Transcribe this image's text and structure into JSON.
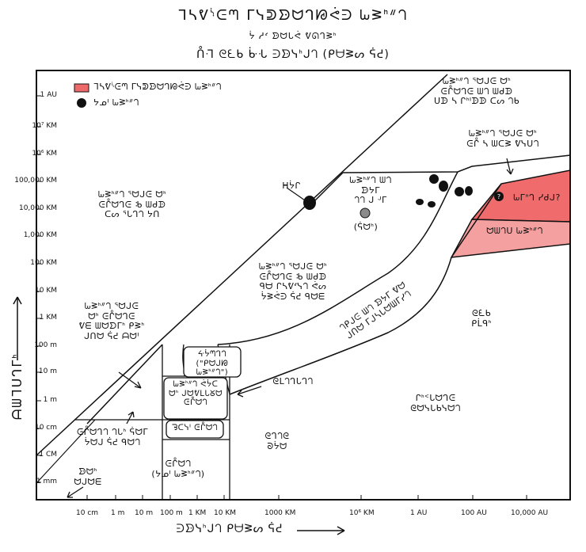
{
  "title": {
    "line1": "ᒣᓴᕓᔋᕮᘉ ᒥᓭᕲᗦᗢᒉᘘᕚᕭ ᘈᕒᑋᐥᘃ",
    "line2": "ᔮ ᓱᔊ ᗦᗢᒐᕚ ᕓᘏᒉᕒᑋ",
    "line3": "ᑍᒬ ᘓᘍᑲ ᒁᒜ ᕭᗦᓭᑋᒍᘃ (ᑭᗨᕒᔕ ᕌᕍ)"
  },
  "legend": {
    "highlight_label": "ᒣᓴᕓᔋᕮᘉ ᒥᓭᕲᗦᗢᒉᘘᕚᕭ ᘈᕒᑋᐥᘃ",
    "dot_label": "ᔭᓄᑊ ᘈᕒᑋᐥᘃ",
    "highlight_color": "#ee6a6a",
    "highlight_light_color": "#f4a0a0",
    "highlight_dark_color": "#f06b6b",
    "dot_color": "#111111",
    "gray_dot_color": "#8a8a8a"
  },
  "regions": {
    "too_dense": "ᘈᕒᑋᐥᘃ ᕐᗢᒍᕮ ᗢᑋ\nᕮᒊᗢᒉᕮ ᒂ ᗯᑯᗬ\nᑕᔕ ᕐᒐᒉᘃ ᔭᑎ",
    "wide_orbit_top": "ᘈᕒᑋᐥᘃ ᕐᗢᒍᕮ ᗢᑋ\nᕮᒊᗢᒉᕮ ᗯᘃ ᗯᑯᗬ\nᑌᗬ ᓴ ᒋᑋᑊᗬᗬ ᑕᔕ ᘃᑲ",
    "brown_dwarf": "ᘈᕒᑋᐥᘃ ᕐᗢᒍᕮ ᗢᑋ\nᕮᒊ ᓴ ᗯᑕᕒ ᕓᓭᑌᘃ",
    "we_can_see": "ᘈᕒᑋᐥᘃ ᗯᘃ ᗦᔭᒥ\nᘃᘃ ᒍ ᒢᒥ",
    "moon": "ᓱᔊᑊ",
    "mars": "ᕼᔮᒋ",
    "planet_nine": "ᘈᒥᐢᒉ ᓯᑯᒍ?",
    "dwarf_planets": "ᗢᗯᘃᑌ ᘈᕒᑋᐥᘃ",
    "middle": "ᘈᕒᑋᐥᘃ ᕐᗢᒍᕮ ᗢᑋ\nᕮᒊᗢᒉᕮ ᒂ ᗯᑯᗬ\nᑫᗨ ᒋᓴᕓᔊᓭᘃ ᕚᔕ\nᔮᕒᕚᕭ ᕌᕍ ᑫᗢᗴ",
    "diagonal": "ᘃᑭᒍᕮ ᗯᘃ ᗦᔭᒥ ᕓᗢ\nᒍᑎᗢ ᒥᒍᓴᒐᗢᗯᒥᓯᘃ",
    "atmosphere": "ᘓᒪᘃᒉᒐᒉᘃ",
    "too_close": "ᘈᕒᑋᐥᘃ ᕐᗢᒍᕮ\nᗢᑋ ᕮᒊᗢᒉᕮ\nᕓᗴ ᗯᗢᗤᒥᑋ ᑭᕒᑋ\nᒍᑎᗢ ᕌᕍ ᗩᗢᑊ",
    "asteroids": "ᒋᑋᑉᒐᗢᒉᕮ\nᘓᗢᓭᒐᑲᓭᗢᘃ",
    "moons_small": "ᕮᒊᗢᘃ\nᑯᗢᑊ ᘈᕒᑋᐥᘃ",
    "rocks": "ᘋᑕᓭᑊ ᕮᒊᗢᘃ",
    "bacteria": "ᕮᒊᗢᒉᘃ ᘃᒐᑋ ᕌᗢᒥ\nᔮᗢᒍ ᕌᕍ ᑫᗢᘃ",
    "small_stuff": "ᘓᘍᑲ\nᑭᒫᑫᑋ",
    "big_rocks": "ᘓᒉᘃᘓ\nᘐᔮᗢ",
    "mid_air": "ᔰᔮᘉᒉᘃ\n(\"ᑭᗢᒍᘘ ᘈᕒᑋᐥᘃ\")",
    "sun_planets": "ᘈᕒᑋᐥᘃ ᕚᔮᑕ\nᗢᑋ ᒍᗢᕓᒪᒐᘜᗢ\nᕮᒊᗢᘃ",
    "dust": "ᗦᗢᑋ\nᗢᒍᗢᗴ",
    "ellipsis": "(ᕌᗢᑋ)",
    "rocky_planets": "ᕮᒊᗢᘃ\n(ᔭᓄᑊ ᘈᕒᑋᐥᘃ)"
  },
  "axes": {
    "ylabel": "ᗩᗯᒣᑌᒉᒥᑋ",
    "xlabel": "ᕭᗦᓭᑋᒍᘃ ᑭᗨᕒᔕ ᕌᕍ",
    "y_ticks": [
      "1 AU",
      "10⁷ KM",
      "10⁶ KM",
      "100,000 KM",
      "10,000 KM",
      "1,000 KM",
      "100 KM",
      "10 KM",
      "1 KM",
      "100 m",
      "10 m",
      "1 m",
      "10 cm",
      "1 CM",
      "1 mm"
    ],
    "x_ticks": [
      "10 cm",
      "1 m",
      "10 m",
      "100 m",
      "1 KM",
      "10 KM",
      "1000 KM",
      "10⁶ KM",
      "1 AU",
      "100 AU",
      "10,000 AU"
    ]
  }
}
